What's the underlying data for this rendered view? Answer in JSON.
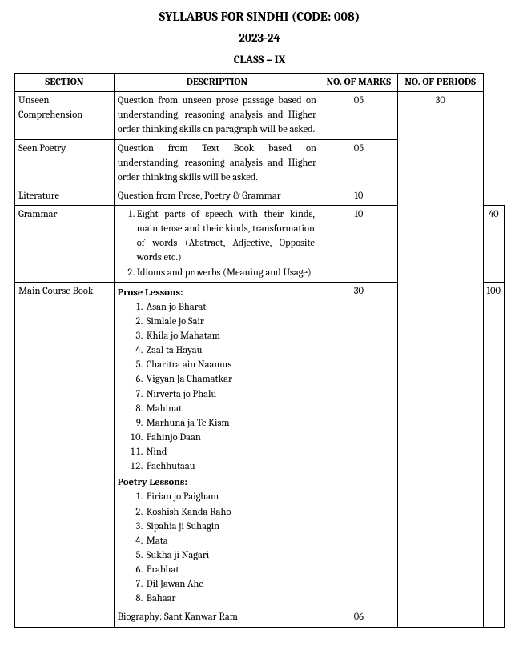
{
  "header": {
    "title": "SYLLABUS FOR SINDHI (CODE: 008)",
    "year": "2023-24",
    "class": "CLASS – IX"
  },
  "table": {
    "headers": {
      "section": "SECTION",
      "description": "DESCRIPTION",
      "marks": "NO. OF MARKS",
      "periods": "NO. OF PERIODS"
    },
    "rows": {
      "unseen": {
        "section": "Unseen Comprehension",
        "description": "Question from unseen prose passage based on understanding, reasoning analysis and Higher order thinking skills on paragraph will be asked.",
        "marks": "05",
        "periods": "30"
      },
      "seen": {
        "section": "Seen Poetry",
        "description": "Question from Text Book based on understanding, reasoning analysis and Higher order thinking skills will be asked.",
        "marks": "05"
      },
      "lit": {
        "section": "Literature",
        "description": "Question from Prose, Poetry & Grammar",
        "marks": "10"
      },
      "grammar": {
        "section": "Grammar",
        "item1": "Eight parts of speech with their kinds, main tense and their kinds, transformation of words (Abstract, Adjective, Opposite words etc.)",
        "item2": "Idioms and proverbs (Meaning and Usage)",
        "marks": "10",
        "periods": "40"
      },
      "main": {
        "section": "Main Course Book",
        "prose_head": "Prose Lessons:",
        "prose": {
          "p1": "Asan jo Bharat",
          "p2": "Simlale jo Sair",
          "p3": "Khila jo Mahatam",
          "p4": "Zaal ta Hayau",
          "p5": "Charitra ain Naamus",
          "p6": "Vigyan Ja Chamatkar",
          "p7": "Nirverta jo Phalu",
          "p8": "Mahinat",
          "p9": "Marhuna ja Te Kism",
          "p10": "Pahinjo Daan",
          "p11": "Nind",
          "p12": "Pachhutaau"
        },
        "poetry_head": "Poetry Lessons:",
        "poetry": {
          "q1": "Pirian jo Paigham",
          "q2": "Koshish Kanda Raho",
          "q3": "Sipahia ji Suhagin",
          "q4": "Mata",
          "q5": "Sukha ji Nagari",
          "q6": "Prabhat",
          "q7": "Dil Jawan Ahe",
          "q8": "Bahaar"
        },
        "marks": "30",
        "periods": "100"
      },
      "bio": {
        "description": "Biography: Sant Kanwar Ram",
        "marks": "06"
      }
    }
  }
}
